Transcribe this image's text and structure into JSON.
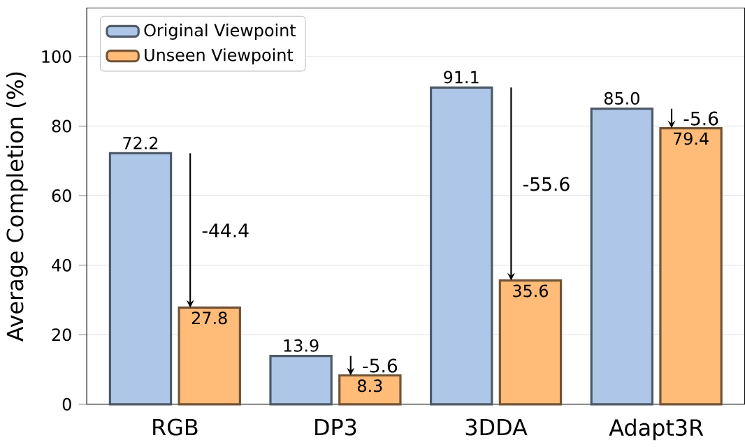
{
  "chart_data": {
    "type": "bar",
    "ylabel": "Average Completion (%)",
    "categories": [
      "RGB",
      "DP3",
      "3DDA",
      "Adapt3R"
    ],
    "series": [
      {
        "name": "Original Viewpoint",
        "color": "#aec7e8",
        "values": [
          72.2,
          13.9,
          91.1,
          85.0
        ],
        "value_labels": [
          "72.2",
          "13.9",
          "91.1",
          "85.0"
        ]
      },
      {
        "name": "Unseen Viewpoint",
        "color": "#ffbb78",
        "values": [
          27.8,
          8.3,
          35.6,
          79.4
        ],
        "value_labels": [
          "27.8",
          "8.3",
          "35.6",
          "79.4"
        ]
      }
    ],
    "ylim": [
      0,
      114
    ],
    "yticks": [
      0,
      20,
      40,
      60,
      80,
      100
    ],
    "grid": "y",
    "legend": "top left",
    "annotations": [
      {
        "text": "-44.4",
        "x": "RGB",
        "y": 50.0
      },
      {
        "text": "-5.6",
        "x": "DP3",
        "y": 11.1
      },
      {
        "text": "-55.6",
        "x": "3DDA",
        "y": 63.35
      },
      {
        "text": "-5.6",
        "x": "Adapt3R",
        "y": 82.2
      }
    ]
  }
}
